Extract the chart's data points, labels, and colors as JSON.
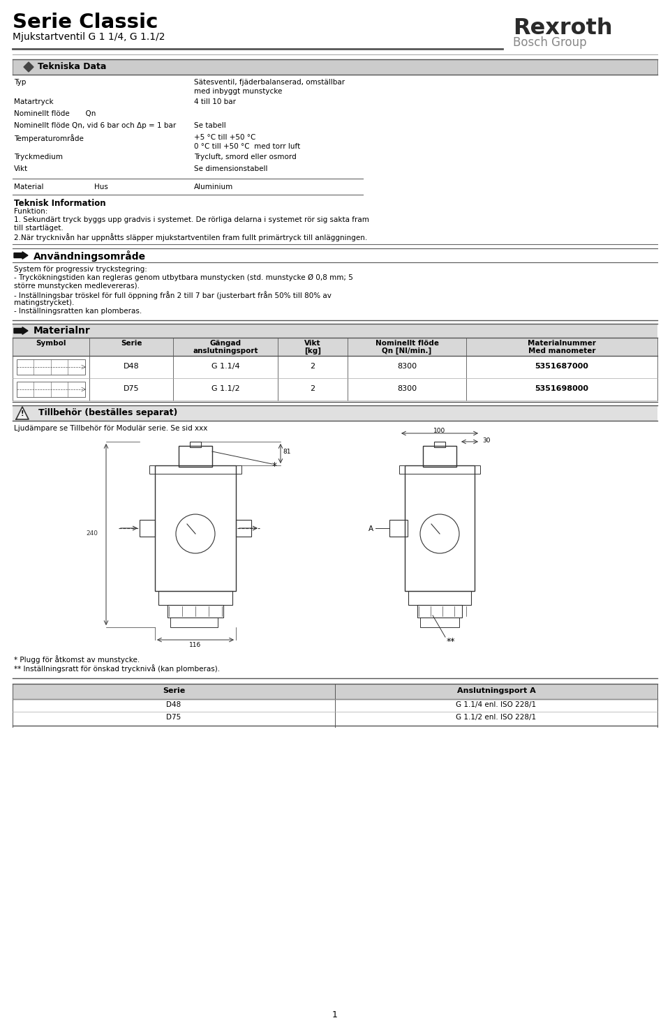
{
  "title": "Serie Classic",
  "subtitle": "Mjukstartventil G 1 1/4, G 1.1/2",
  "brand": "Rexroth",
  "brand_sub": "Bosch Group",
  "section1_header": "Tekniska Data",
  "tech_labels": [
    "Typ",
    "Matartryck",
    "Nominellt flöde       Qn",
    "Nominellt flöde Qn, vid 6 bar och Δp = 1 bar",
    "Temperaturområde",
    "Tryckmedium",
    "Vikt"
  ],
  "tech_values": [
    "Sätesventil, fjäderbalanserad, omställbar\nmed inbyggt munstycke",
    "4 till 10 bar",
    "",
    "Se tabell",
    "+5 °C till +50 °C\n0 °C till +50 °C  med torr luft",
    "Trycluft, smord eller osmord",
    "Se dimensionstabell"
  ],
  "material_label": "Material",
  "material_hus": "Hus",
  "material_value": "Aluminium",
  "section2_header": "Teknisk Information",
  "funk_label": "Funktion:",
  "funk_lines": [
    "1. Sekundärt tryck byggs upp gradvis i systemet. De rörliga delarna i systemet rör sig sakta fram",
    "till startläget.",
    "2.När trycknivån har uppnåtts släpper mjukstartventilen fram fullt primärtryck till anläggningen."
  ],
  "section3_header": "Användningsområde",
  "anvand_lines": [
    "System för progressiv tryckstegring:",
    "- Tryckökningstiden kan regleras genom utbytbara munstycken (std. munstycke Ø 0,8 mm; 5",
    "större munstycken medlevereras).",
    "- Inställningsbar tröskel för full öppning från 2 till 7 bar (justerbart från 50% till 80% av",
    "matingstrycket).",
    "- Inställningsratten kan plomberas."
  ],
  "section4_header": "Materialnr",
  "table_headers": [
    "Symbol",
    "Serie",
    "Gängad\nanslutningsport",
    "Vikt\n[kg]",
    "Nominellt flöde\nQn [Nl/min.]",
    "Materialnummer\nMed manometer"
  ],
  "table_rows": [
    [
      "sym",
      "D48",
      "G 1.1/4",
      "2",
      "8300",
      "5351687000"
    ],
    [
      "sym",
      "D75",
      "G 1.1/2",
      "2",
      "8300",
      "5351698000"
    ]
  ],
  "section5_header": "Tillbehör (beställes separat)",
  "tillbehor_text": "Ljudämpare se Tillbehör för Modulär serie. Se sid xxx",
  "dim_81": "81",
  "dim_240": "240",
  "dim_116": "116",
  "dim_100": "100",
  "dim_30": "30",
  "label_A": "A",
  "label_star": "*",
  "label_dstar": "**",
  "footnote1": "* Plugg för åtkomst av munstycke.",
  "footnote2": "** Inställningsratt för önskad trycknivå (kan plomberas).",
  "bottom_headers": [
    "Serie",
    "Anslutningsport A"
  ],
  "bottom_rows": [
    [
      "D48",
      "G 1.1/4 enl. ISO 228/1"
    ],
    [
      "D75",
      "G 1.1/2 enl. ISO 228/1"
    ]
  ],
  "page_number": "1"
}
